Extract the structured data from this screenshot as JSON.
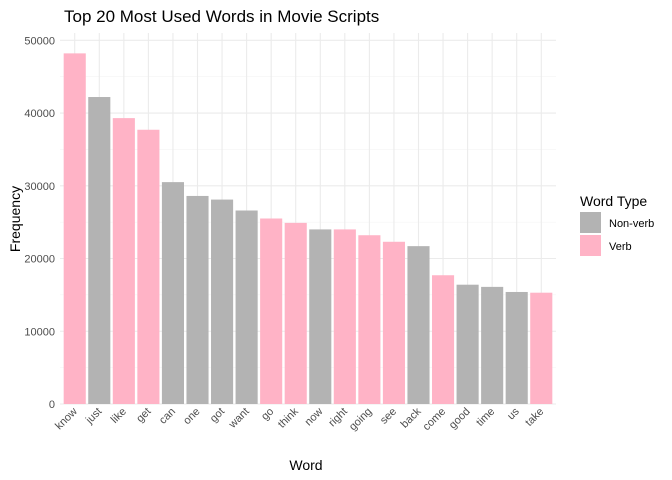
{
  "chart_data": {
    "type": "bar",
    "title": "Top 20 Most Used Words in Movie Scripts",
    "xlabel": "Word",
    "ylabel": "Frequency",
    "categories": [
      "know",
      "just",
      "like",
      "get",
      "can",
      "one",
      "got",
      "want",
      "go",
      "think",
      "now",
      "right",
      "going",
      "see",
      "back",
      "come",
      "good",
      "time",
      "us",
      "take"
    ],
    "values": [
      48200,
      42200,
      39300,
      37700,
      30500,
      28600,
      28100,
      26600,
      25500,
      24900,
      24000,
      24000,
      23200,
      22300,
      21700,
      17700,
      16400,
      16100,
      15400,
      15300
    ],
    "word_type": [
      "Verb",
      "Non-verb",
      "Verb",
      "Verb",
      "Non-verb",
      "Non-verb",
      "Non-verb",
      "Non-verb",
      "Verb",
      "Verb",
      "Non-verb",
      "Verb",
      "Verb",
      "Verb",
      "Non-verb",
      "Verb",
      "Non-verb",
      "Non-verb",
      "Non-verb",
      "Verb"
    ],
    "ylim": [
      0,
      50000
    ],
    "yticks": [
      0,
      10000,
      20000,
      30000,
      40000,
      50000
    ],
    "ytick_labels": [
      "0",
      "10000",
      "20000",
      "30000",
      "40000",
      "50000"
    ],
    "grid": true,
    "legend": {
      "title": "Word Type",
      "position": "right",
      "entries": [
        {
          "label": "Non-verb",
          "color": "#b3b3b3"
        },
        {
          "label": "Verb",
          "color": "#ffb3c6"
        }
      ]
    }
  }
}
